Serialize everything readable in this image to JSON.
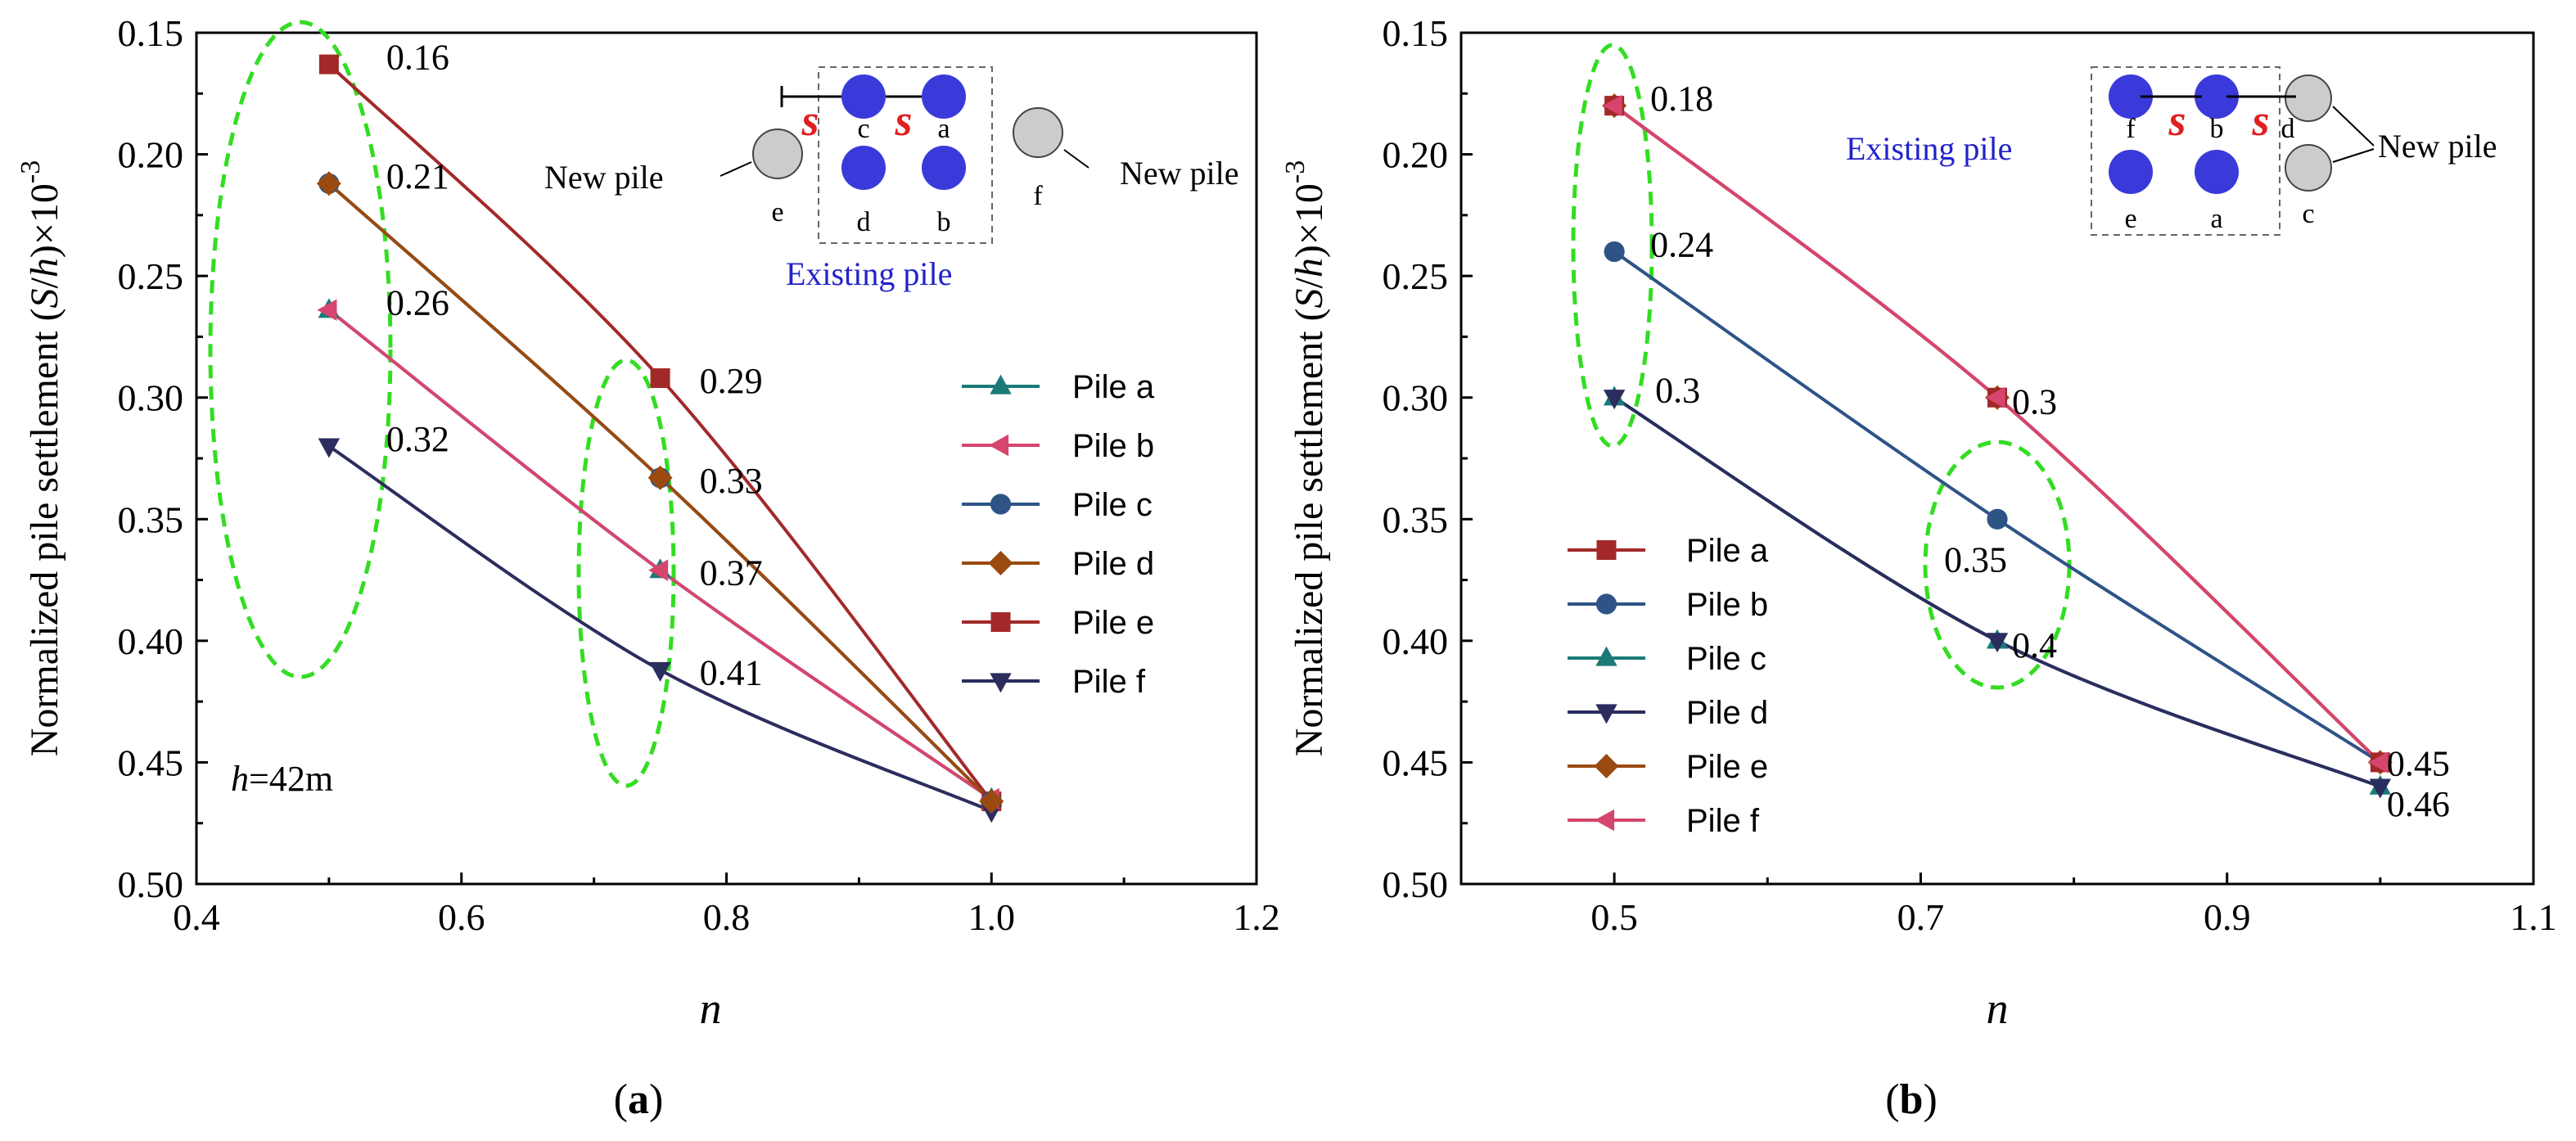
{
  "chart_data": [
    {
      "id": "a",
      "type": "line",
      "panel_label": "(a)",
      "panel_label_letter": "a",
      "xlabel": "n",
      "ylabel": "Normalized pile settlement (S/h)×10",
      "ylabel_parts": {
        "pre": "Normalized pile settlement (",
        "var1": "S",
        "mid": "/",
        "var2": "h",
        "post": ")×10",
        "exp": "-3"
      },
      "xlim": [
        0.4,
        1.2
      ],
      "ylim": [
        0.5,
        0.15
      ],
      "y_reversed": true,
      "xticks": [
        0.4,
        0.6,
        0.8,
        1.0,
        1.2
      ],
      "xtick_labels": [
        "0.4",
        "0.6",
        "0.8",
        "1.0",
        "1.2"
      ],
      "yticks": [
        0.15,
        0.2,
        0.25,
        0.3,
        0.35,
        0.4,
        0.45,
        0.5
      ],
      "ytick_labels": [
        "0.15",
        "0.20",
        "0.25",
        "0.30",
        "0.35",
        "0.40",
        "0.45",
        "0.50"
      ],
      "x": [
        0.5,
        0.75,
        1.0
      ],
      "series": [
        {
          "name": "Pile a",
          "values": [
            0.264,
            0.371,
            0.465
          ],
          "color": "#1b7a78",
          "marker": "triangle-up"
        },
        {
          "name": "Pile b",
          "values": [
            0.264,
            0.371,
            0.465
          ],
          "color": "#d6456e",
          "marker": "triangle-left"
        },
        {
          "name": "Pile c",
          "values": [
            0.212,
            0.333,
            0.466
          ],
          "color": "#2e5486",
          "marker": "circle"
        },
        {
          "name": "Pile d",
          "values": [
            0.212,
            0.333,
            0.466
          ],
          "color": "#9a4a10",
          "marker": "diamond"
        },
        {
          "name": "Pile e",
          "values": [
            0.163,
            0.292,
            0.466
          ],
          "color": "#a32929",
          "marker": "square"
        },
        {
          "name": "Pile f",
          "values": [
            0.32,
            0.412,
            0.47
          ],
          "color": "#2b2d5e",
          "marker": "triangle-down"
        }
      ],
      "annotations": [
        {
          "text": "0.16",
          "x": 0.5,
          "y": 0.163
        },
        {
          "text": "0.21",
          "x": 0.5,
          "y": 0.212
        },
        {
          "text": "0.26",
          "x": 0.5,
          "y": 0.264
        },
        {
          "text": "0.32",
          "x": 0.5,
          "y": 0.32
        },
        {
          "text": "0.29",
          "x": 0.75,
          "y": 0.292
        },
        {
          "text": "0.33",
          "x": 0.75,
          "y": 0.333
        },
        {
          "text": "0.37",
          "x": 0.75,
          "y": 0.371
        },
        {
          "text": "0.41",
          "x": 0.75,
          "y": 0.412
        }
      ],
      "note": {
        "var": "h",
        "rest": "=42m"
      },
      "inset": {
        "spacing_symbol": "s",
        "new_pile_label": "New pile",
        "existing_label": "Existing pile",
        "pile_letters": [
          "c",
          "a",
          "d",
          "b",
          "e",
          "f"
        ]
      },
      "legend_position": "right"
    },
    {
      "id": "b",
      "type": "line",
      "panel_label": "(b)",
      "panel_label_letter": "b",
      "xlabel": "n",
      "ylabel": "Normalized pile settlement (S/h)×10",
      "ylabel_parts": {
        "pre": "Normalized pile settlement (",
        "var1": "S",
        "mid": "/",
        "var2": "h",
        "post": ")×10",
        "exp": "-3"
      },
      "xlim": [
        0.4,
        1.1
      ],
      "ylim": [
        0.5,
        0.15
      ],
      "y_reversed": true,
      "xticks": [
        0.5,
        0.7,
        0.9,
        1.1
      ],
      "xtick_labels": [
        "0.5",
        "0.7",
        "0.9",
        "1.1"
      ],
      "yticks": [
        0.15,
        0.2,
        0.25,
        0.3,
        0.35,
        0.4,
        0.45,
        0.5
      ],
      "ytick_labels": [
        "0.15",
        "0.20",
        "0.25",
        "0.30",
        "0.35",
        "0.40",
        "0.45",
        "0.50"
      ],
      "x": [
        0.5,
        0.75,
        1.0
      ],
      "series": [
        {
          "name": "Pile a",
          "values": [
            0.18,
            0.3,
            0.45
          ],
          "color": "#a32929",
          "marker": "square"
        },
        {
          "name": "Pile b",
          "values": [
            0.24,
            0.35,
            0.45
          ],
          "color": "#2e5486",
          "marker": "circle"
        },
        {
          "name": "Pile c",
          "values": [
            0.3,
            0.4,
            0.46
          ],
          "color": "#1b7a78",
          "marker": "triangle-up"
        },
        {
          "name": "Pile d",
          "values": [
            0.3,
            0.4,
            0.46
          ],
          "color": "#2b2d5e",
          "marker": "triangle-down"
        },
        {
          "name": "Pile e",
          "values": [
            0.18,
            0.3,
            0.45
          ],
          "color": "#9a4a10",
          "marker": "diamond"
        },
        {
          "name": "Pile f",
          "values": [
            0.18,
            0.3,
            0.45
          ],
          "color": "#d6456e",
          "marker": "triangle-left"
        }
      ],
      "annotations": [
        {
          "text": "0.18",
          "x": 0.5,
          "y": 0.18
        },
        {
          "text": "0.24",
          "x": 0.5,
          "y": 0.24
        },
        {
          "text": "0.3",
          "x": 0.5,
          "y": 0.3
        },
        {
          "text": "0.3",
          "x": 0.75,
          "y": 0.3
        },
        {
          "text": "0.35",
          "x": 0.75,
          "y": 0.35
        },
        {
          "text": "0.4",
          "x": 0.75,
          "y": 0.4
        },
        {
          "text": "0.45",
          "x": 1.0,
          "y": 0.45
        },
        {
          "text": "0.46",
          "x": 1.0,
          "y": 0.46
        }
      ],
      "inset": {
        "spacing_symbol": "s",
        "new_pile_label": "New pile",
        "existing_label": "Existing pile",
        "pile_letters": [
          "f",
          "b",
          "d",
          "e",
          "a",
          "c"
        ]
      },
      "legend_position": "bottom-left"
    }
  ],
  "colors": {
    "ellipse": "#33dd22",
    "existing_pile": "#3a3adb",
    "new_pile": "#cccccc",
    "spacing_red": "#e02020",
    "existing_label": "#2222cc"
  }
}
